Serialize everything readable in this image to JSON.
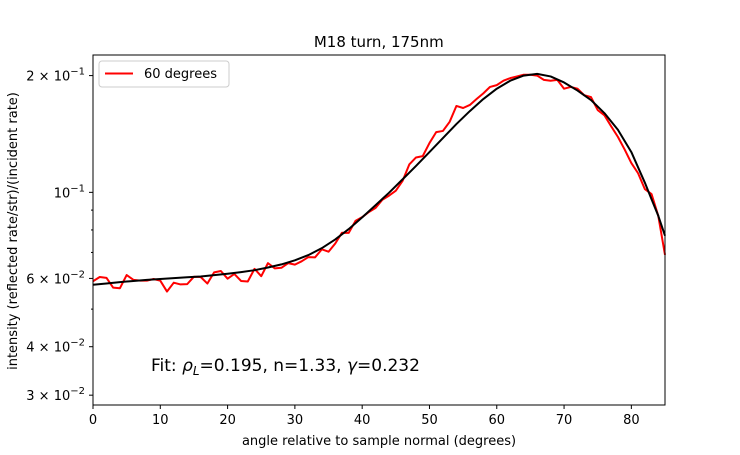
{
  "chart_data": {
    "type": "line",
    "title": "M18 turn, 175nm",
    "xlabel": "angle relative to sample normal (degrees)",
    "ylabel": "intensity (reflected rate/str)/(incident rate)",
    "xlim": [
      0,
      85
    ],
    "ylim": [
      0.0283,
      0.226
    ],
    "yscale": "log",
    "grid": false,
    "legend_position": "upper-left",
    "x_ticks": [
      {
        "value": 0,
        "label": "0"
      },
      {
        "value": 10,
        "label": "10"
      },
      {
        "value": 20,
        "label": "20"
      },
      {
        "value": 30,
        "label": "30"
      },
      {
        "value": 40,
        "label": "40"
      },
      {
        "value": 50,
        "label": "50"
      },
      {
        "value": 60,
        "label": "60"
      },
      {
        "value": 70,
        "label": "70"
      },
      {
        "value": 80,
        "label": "80"
      }
    ],
    "y_ticks": [
      {
        "value": 0.03,
        "base": "3 × 10",
        "exp": "−2"
      },
      {
        "value": 0.04,
        "base": "4 × 10",
        "exp": "−2"
      },
      {
        "value": 0.06,
        "base": "6 × 10",
        "exp": "−2"
      },
      {
        "value": 0.1,
        "base": "10",
        "exp": "−1"
      },
      {
        "value": 0.2,
        "base": "2 × 10",
        "exp": "−1"
      }
    ],
    "y_minor_ticks": [
      0.05,
      0.07,
      0.08,
      0.09
    ],
    "series": [
      {
        "name": "60 degrees",
        "color": "#ff0000",
        "x": [
          0,
          1,
          2,
          3,
          4,
          5,
          6,
          7,
          8,
          9,
          10,
          11,
          12,
          13,
          14,
          15,
          16,
          17,
          18,
          19,
          20,
          21,
          22,
          23,
          24,
          25,
          26,
          27,
          28,
          29,
          30,
          31,
          32,
          33,
          34,
          35,
          36,
          37,
          38,
          39,
          40,
          41,
          42,
          43,
          44,
          45,
          46,
          47,
          48,
          49,
          50,
          51,
          52,
          53,
          54,
          55,
          56,
          57,
          58,
          59,
          60,
          61,
          62,
          63,
          64,
          65,
          66,
          67,
          68,
          69,
          70,
          71,
          72,
          73,
          74,
          75,
          76,
          77,
          78,
          79,
          80,
          81,
          82,
          83,
          84,
          85
        ],
        "y": [
          0.059,
          0.0605,
          0.0602,
          0.0568,
          0.0566,
          0.0612,
          0.0595,
          0.0592,
          0.0592,
          0.0598,
          0.0592,
          0.0555,
          0.0585,
          0.0579,
          0.058,
          0.0606,
          0.0605,
          0.0582,
          0.0622,
          0.0627,
          0.0599,
          0.0616,
          0.0591,
          0.0589,
          0.0635,
          0.0608,
          0.0657,
          0.0637,
          0.0639,
          0.0657,
          0.0651,
          0.0664,
          0.0681,
          0.068,
          0.0713,
          0.0703,
          0.0738,
          0.0787,
          0.0786,
          0.0844,
          0.0863,
          0.089,
          0.0912,
          0.0957,
          0.0981,
          0.101,
          0.107,
          0.118,
          0.123,
          0.124,
          0.134,
          0.143,
          0.144,
          0.152,
          0.167,
          0.165,
          0.168,
          0.174,
          0.18,
          0.187,
          0.189,
          0.194,
          0.197,
          0.199,
          0.201,
          0.201,
          0.2,
          0.195,
          0.194,
          0.195,
          0.185,
          0.187,
          0.185,
          0.178,
          0.176,
          0.163,
          0.158,
          0.148,
          0.139,
          0.129,
          0.119,
          0.112,
          0.102,
          0.099,
          0.087,
          0.069
        ]
      },
      {
        "name": "",
        "color": "#000000",
        "x": [
          0,
          2,
          4,
          6,
          8,
          10,
          12,
          14,
          16,
          18,
          20,
          22,
          24,
          26,
          28,
          30,
          32,
          34,
          36,
          38,
          40,
          42,
          44,
          46,
          48,
          50,
          52,
          54,
          56,
          58,
          60,
          62,
          64,
          66,
          68,
          70,
          72,
          74,
          76,
          78,
          80,
          82,
          83,
          84,
          85
        ],
        "y": [
          0.0578,
          0.0582,
          0.0587,
          0.0591,
          0.0595,
          0.0598,
          0.0601,
          0.0604,
          0.0607,
          0.0612,
          0.0617,
          0.0623,
          0.063,
          0.064,
          0.0652,
          0.0668,
          0.0689,
          0.0718,
          0.0756,
          0.0804,
          0.0862,
          0.0927,
          0.0998,
          0.108,
          0.117,
          0.127,
          0.138,
          0.15,
          0.162,
          0.174,
          0.185,
          0.194,
          0.2,
          0.202,
          0.199,
          0.192,
          0.183,
          0.173,
          0.16,
          0.145,
          0.127,
          0.106,
          0.096,
          0.087,
          0.0773
        ]
      }
    ],
    "annotation": {
      "prefix": "Fit: ",
      "rho": "ρ",
      "rho_sub": "L",
      "rest1": "=0.195, n=1.33, ",
      "gamma": "γ",
      "rest2": "=0.232"
    }
  }
}
